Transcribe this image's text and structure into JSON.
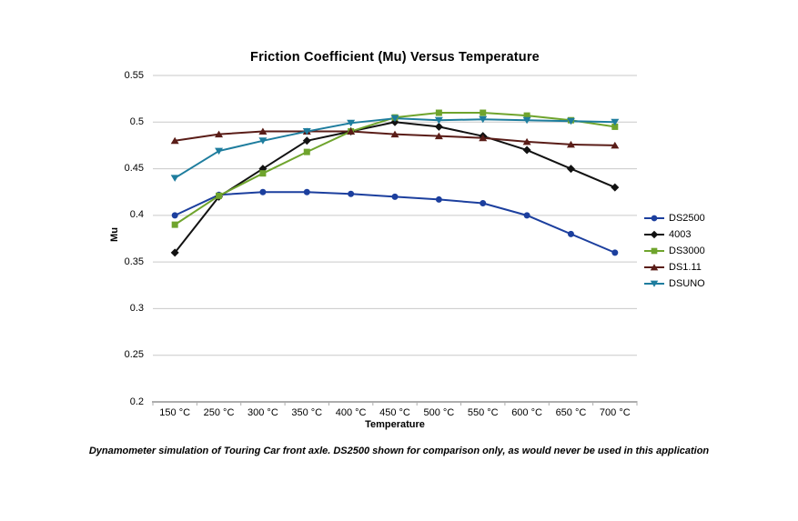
{
  "page": {
    "footnote": "Dynamometer simulation of Touring Car front axle. DS2500 shown for comparison only, as would never be used in this application"
  },
  "chart_data": {
    "type": "line",
    "title": "Friction Coefficient (Mu) Versus Temperature",
    "xlabel": "Temperature",
    "ylabel": "Mu",
    "categories": [
      "150 °C",
      "250 °C",
      "300 °C",
      "350 °C",
      "400 °C",
      "450 °C",
      "500 °C",
      "550 °C",
      "600 °C",
      "650 °C",
      "700 °C"
    ],
    "series": [
      {
        "name": "DS2500",
        "color": "#1C3F9E",
        "marker": "circle",
        "values": [
          0.4,
          0.422,
          0.425,
          0.425,
          0.423,
          0.42,
          0.417,
          0.413,
          0.4,
          0.38,
          0.36
        ]
      },
      {
        "name": "4003",
        "color": "#121212",
        "marker": "diamond",
        "values": [
          0.36,
          0.42,
          0.45,
          0.48,
          0.49,
          0.5,
          0.495,
          0.485,
          0.47,
          0.45,
          0.43
        ]
      },
      {
        "name": "DS3000",
        "color": "#6FA42D",
        "marker": "square",
        "values": [
          0.39,
          0.421,
          0.445,
          0.468,
          0.49,
          0.505,
          0.51,
          0.51,
          0.507,
          0.502,
          0.495
        ]
      },
      {
        "name": "DS1.11",
        "color": "#5A1D18",
        "marker": "triangle-up",
        "values": [
          0.48,
          0.487,
          0.49,
          0.49,
          0.49,
          0.487,
          0.485,
          0.483,
          0.479,
          0.476,
          0.475
        ]
      },
      {
        "name": "DSUNO",
        "color": "#1E7D9E",
        "marker": "triangle-down",
        "values": [
          0.44,
          0.469,
          0.48,
          0.49,
          0.499,
          0.504,
          0.502,
          0.503,
          0.502,
          0.501,
          0.5
        ]
      }
    ],
    "ylim": [
      0.2,
      0.55
    ],
    "ytick_step": 0.05,
    "ytick_labels": [
      "0.55",
      "0.5",
      "0.45",
      "0.4",
      "0.35",
      "0.3",
      "0.25",
      "0.2"
    ],
    "grid": "horizontal",
    "legend_position": "right",
    "colors": {
      "gridline": "#C9C9C9",
      "axis": "#ADADAD",
      "text": "#000000",
      "background": "#FFFFFF"
    }
  }
}
